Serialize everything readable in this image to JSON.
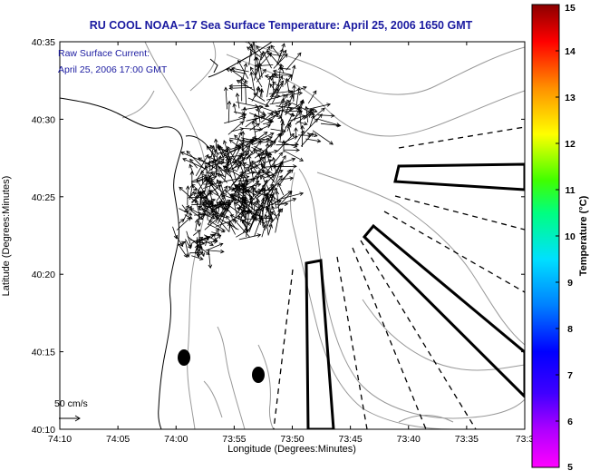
{
  "title": "RU COOL  NOAA−17  Sea Surface Temperature:  April 25, 2006 1650 GMT",
  "annotation": {
    "line1": "Raw Surface Current:",
    "line2": "April 25, 2006 17:00 GMT"
  },
  "axes": {
    "xlabel": "Longitude (Degrees:Minutes)",
    "ylabel": "Latitude (Degrees:Minutes)",
    "x_ticks": [
      "74:10",
      "74:05",
      "74:00",
      "73:55",
      "73:50",
      "73:45",
      "73:40",
      "73:35",
      "73:3"
    ],
    "y_ticks": [
      "40:35",
      "40:30",
      "40:25",
      "40:20",
      "40:15",
      "40:10"
    ]
  },
  "scale_label": "50 cm/s",
  "colorbar": {
    "label": "Temperature (°C)",
    "ticks": [
      "15",
      "14",
      "13",
      "12",
      "11",
      "10",
      "9",
      "8",
      "7",
      "6",
      "5"
    ],
    "min": 5,
    "max": 15,
    "colors": [
      "#ff00ff",
      "#8c00ff",
      "#0000ff",
      "#0090ff",
      "#00ffff",
      "#00ff80",
      "#40ff00",
      "#ffff00",
      "#ff8000",
      "#ff0000",
      "#8b0000"
    ]
  },
  "map": {
    "arrow_field_seed": 7,
    "arrow_count": 520
  }
}
